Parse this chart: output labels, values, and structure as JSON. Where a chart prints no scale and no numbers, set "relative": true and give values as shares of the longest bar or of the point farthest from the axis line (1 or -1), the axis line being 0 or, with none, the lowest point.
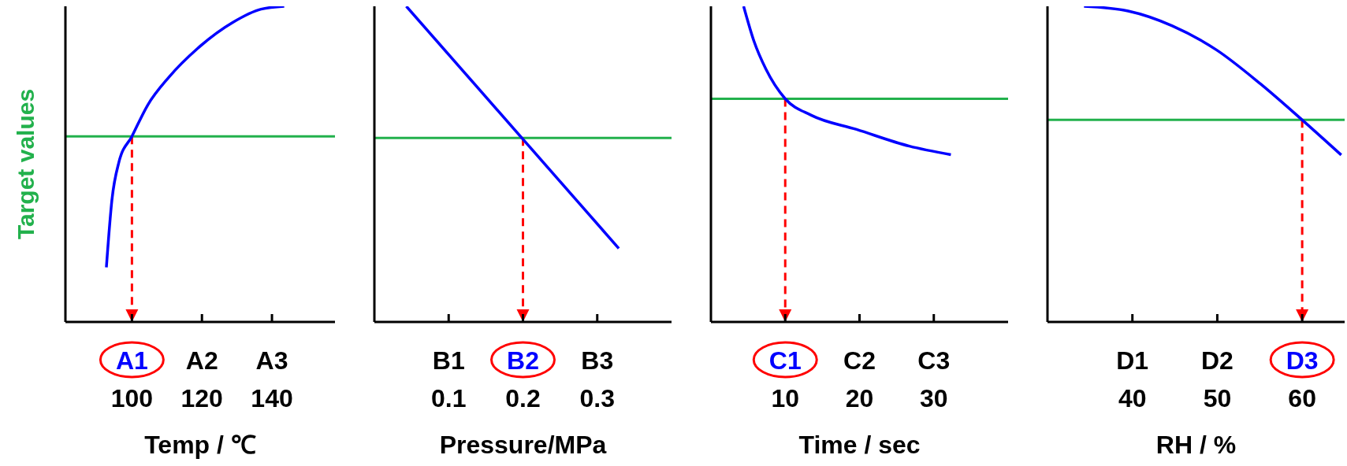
{
  "chart_data": [
    {
      "type": "line",
      "relative": true,
      "ylabel": "Target values",
      "xlabel": "Temp / ℃",
      "xlim": [
        81,
        158
      ],
      "xticks": [
        100,
        120,
        140
      ],
      "marker": "none",
      "line_style": "solid",
      "annotations": [
        "A1",
        "A2",
        "A3"
      ],
      "series": [
        {
          "color": "#0000ff",
          "x": [
            92.7,
            94.3,
            96.3,
            100,
            104.5,
            110.6,
            118.7,
            128.8,
            136.9,
            143.5
          ],
          "values": [
            0.173,
            0.388,
            0.507,
            0.588,
            0.687,
            0.776,
            0.866,
            0.949,
            0.991,
            1
          ]
        }
      ],
      "ref_lines": [
        {
          "axis": "y",
          "value": 0.588,
          "color": "#22b14c",
          "line_style": "solid"
        },
        {
          "axis": "x",
          "value": 100,
          "color": "#ff0000",
          "line_style": "dashed"
        }
      ]
    },
    {
      "type": "line",
      "relative": true,
      "xlabel": "Pressure/MPa",
      "xlim": [
        0,
        0.4
      ],
      "xticks": [
        0.1,
        0.2,
        0.3
      ],
      "marker": "none",
      "line_style": "solid",
      "annotations": [
        "B1",
        "B2",
        "B3"
      ],
      "series": [
        {
          "color": "#0000ff",
          "x": [
            0.043,
            0.329
          ],
          "values": [
            1,
            0.233
          ]
        }
      ],
      "ref_lines": [
        {
          "axis": "y",
          "value": 0.583,
          "color": "#22b14c",
          "line_style": "solid"
        },
        {
          "axis": "x",
          "value": 0.2,
          "color": "#ff0000",
          "line_style": "dashed"
        }
      ]
    },
    {
      "type": "line",
      "relative": true,
      "xlabel": "Time / sec",
      "xlim": [
        0,
        40
      ],
      "xticks": [
        10,
        20,
        30
      ],
      "marker": "none",
      "line_style": "solid",
      "annotations": [
        "C1",
        "C2",
        "C3"
      ],
      "series": [
        {
          "color": "#0000ff",
          "x": [
            4.4,
            5.8,
            7.4,
            10,
            13.5,
            19.6,
            26.7,
            32.3
          ],
          "values": [
            1,
            0.889,
            0.801,
            0.707,
            0.655,
            0.61,
            0.557,
            0.53
          ]
        }
      ],
      "ref_lines": [
        {
          "axis": "y",
          "value": 0.707,
          "color": "#22b14c",
          "line_style": "solid"
        },
        {
          "axis": "x",
          "value": 10,
          "color": "#ff0000",
          "line_style": "dashed"
        }
      ]
    },
    {
      "type": "line",
      "relative": true,
      "xlabel": "RH / %",
      "xlim": [
        30,
        65
      ],
      "xticks": [
        40,
        50,
        60
      ],
      "marker": "none",
      "line_style": "solid",
      "annotations": [
        "D1",
        "D2",
        "D3"
      ],
      "series": [
        {
          "color": "#0000ff",
          "x": [
            34.3,
            39.5,
            44.7,
            49.9,
            55.1,
            60,
            64.6
          ],
          "values": [
            1,
            0.985,
            0.938,
            0.862,
            0.754,
            0.64,
            0.529
          ]
        }
      ],
      "ref_lines": [
        {
          "axis": "y",
          "value": 0.64,
          "color": "#22b14c",
          "line_style": "solid"
        },
        {
          "axis": "x",
          "value": 60,
          "color": "#ff0000",
          "line_style": "dashed"
        }
      ]
    }
  ]
}
